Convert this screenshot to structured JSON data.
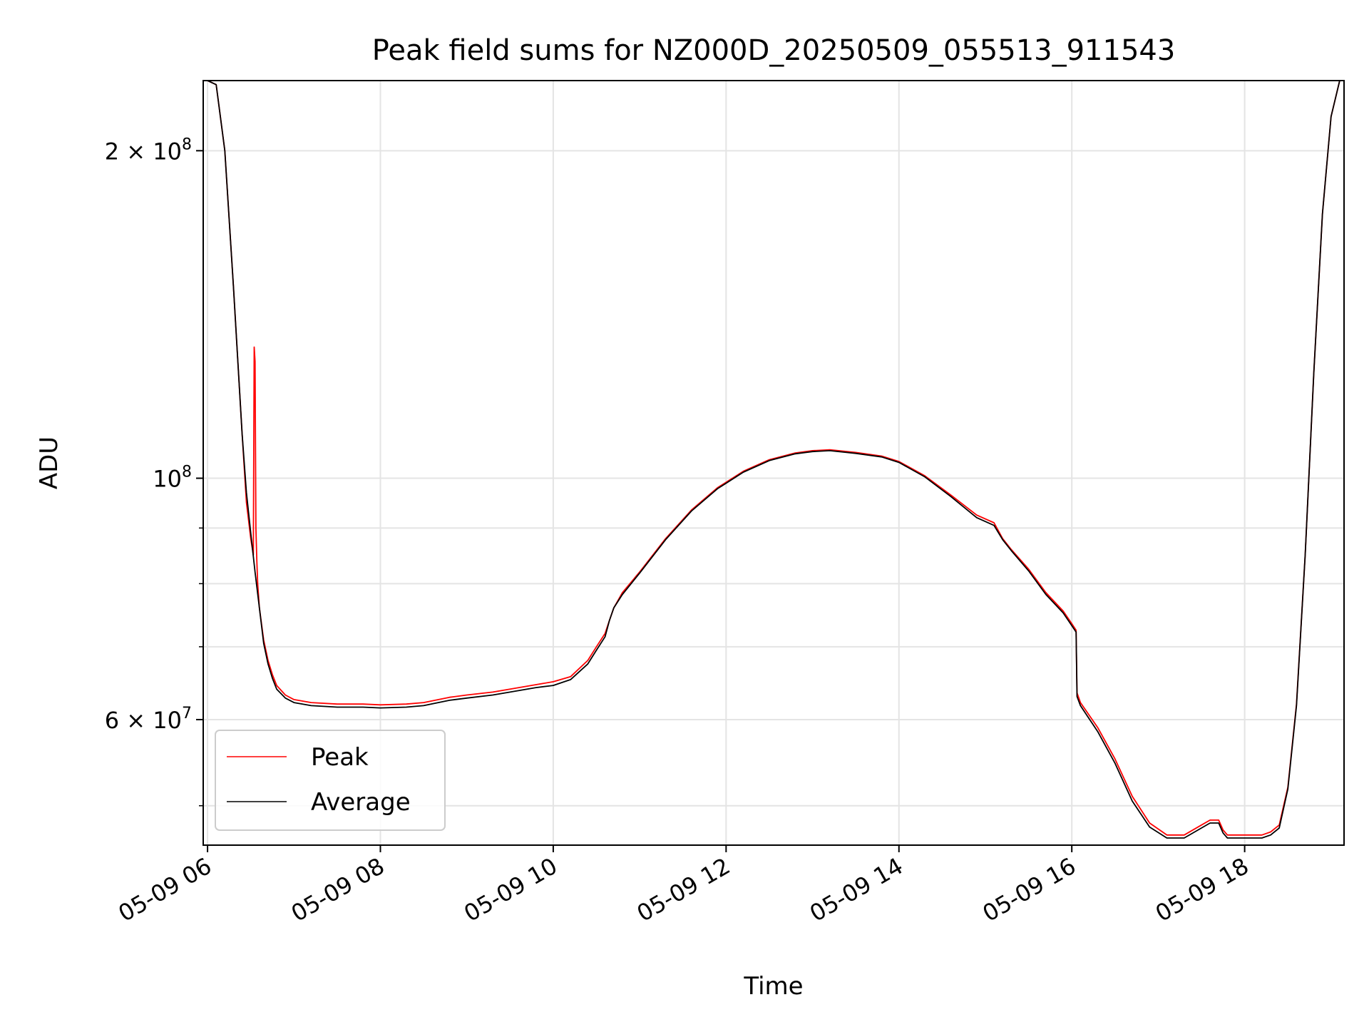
{
  "chart_data": {
    "type": "line",
    "title": "Peak field sums for NZ000D_20250509_055513_911543",
    "xlabel": "Time",
    "ylabel": "ADU",
    "x_tick_labels": [
      "05-09 06",
      "05-09 08",
      "05-09 10",
      "05-09 12",
      "05-09 14",
      "05-09 16",
      "05-09 18"
    ],
    "x_tick_hours": [
      6,
      8,
      10,
      12,
      14,
      16,
      18
    ],
    "y_scale": "log",
    "y_major_ticks": [
      {
        "value": 200000000,
        "mantissa": "2",
        "exponent": "8"
      },
      {
        "value": 100000000,
        "mantissa": "",
        "exponent": "8"
      },
      {
        "value": 60000000,
        "mantissa": "6",
        "exponent": "7"
      }
    ],
    "y_minor_ticks": [
      50000000,
      70000000,
      80000000,
      90000000
    ],
    "xlim_hours": [
      5.95,
      19.15
    ],
    "ylim": [
      46000000,
      232000000
    ],
    "grid": true,
    "legend_position": "lower-left",
    "colors": {
      "peak": "#ff0000",
      "average": "#000000",
      "grid": "#e4e4e4"
    },
    "series": [
      {
        "name": "Peak",
        "color": "#ff0000",
        "x_hours": [
          6.0,
          6.1,
          6.2,
          6.3,
          6.4,
          6.45,
          6.5,
          6.53,
          6.54,
          6.55,
          6.56,
          6.57,
          6.58,
          6.6,
          6.65,
          6.7,
          6.75,
          6.8,
          6.9,
          7.0,
          7.2,
          7.5,
          7.8,
          8.0,
          8.3,
          8.5,
          8.8,
          9.0,
          9.3,
          9.5,
          9.8,
          10.0,
          10.2,
          10.4,
          10.5,
          10.6,
          10.65,
          10.7,
          10.8,
          11.0,
          11.3,
          11.6,
          11.9,
          12.2,
          12.5,
          12.8,
          13.0,
          13.2,
          13.5,
          13.8,
          14.0,
          14.3,
          14.6,
          14.9,
          15.1,
          15.2,
          15.3,
          15.5,
          15.7,
          15.9,
          16.0,
          16.05,
          16.06,
          16.1,
          16.3,
          16.5,
          16.7,
          16.9,
          17.1,
          17.3,
          17.5,
          17.6,
          17.7,
          17.75,
          17.8,
          18.0,
          18.2,
          18.3,
          18.4,
          18.5,
          18.6,
          18.7,
          18.8,
          18.9,
          19.0,
          19.1
        ],
        "y": [
          232000000,
          230000000,
          200000000,
          150000000,
          110000000,
          95000000,
          88000000,
          85000000,
          132000000,
          128000000,
          90000000,
          84000000,
          80000000,
          76000000,
          71000000,
          68000000,
          66000000,
          64500000,
          63200000,
          62600000,
          62200000,
          62000000,
          62000000,
          61900000,
          62000000,
          62200000,
          62900000,
          63200000,
          63600000,
          64000000,
          64600000,
          65000000,
          65700000,
          68000000,
          70000000,
          72000000,
          74000000,
          76000000,
          78500000,
          82000000,
          88000000,
          93500000,
          98000000,
          101500000,
          104000000,
          105500000,
          106000000,
          106200000,
          105600000,
          104800000,
          103600000,
          100500000,
          96500000,
          92500000,
          91000000,
          88000000,
          86000000,
          82500000,
          78500000,
          75500000,
          73500000,
          72500000,
          63500000,
          62200000,
          59000000,
          55200000,
          51000000,
          48200000,
          47000000,
          47000000,
          48000000,
          48500000,
          48500000,
          47500000,
          47000000,
          47000000,
          47000000,
          47300000,
          48000000,
          52000000,
          62000000,
          85000000,
          125000000,
          175000000,
          215000000,
          232000000
        ]
      },
      {
        "name": "Average",
        "color": "#000000",
        "x_hours": [
          6.0,
          6.1,
          6.2,
          6.3,
          6.4,
          6.45,
          6.5,
          6.55,
          6.6,
          6.65,
          6.7,
          6.75,
          6.8,
          6.9,
          7.0,
          7.2,
          7.5,
          7.8,
          8.0,
          8.3,
          8.5,
          8.8,
          9.0,
          9.3,
          9.5,
          9.8,
          10.0,
          10.2,
          10.4,
          10.5,
          10.6,
          10.65,
          10.7,
          10.8,
          11.0,
          11.3,
          11.6,
          11.9,
          12.2,
          12.5,
          12.8,
          13.0,
          13.2,
          13.5,
          13.8,
          14.0,
          14.3,
          14.6,
          14.9,
          15.1,
          15.2,
          15.3,
          15.5,
          15.7,
          15.9,
          16.0,
          16.05,
          16.06,
          16.1,
          16.3,
          16.5,
          16.7,
          16.9,
          17.1,
          17.3,
          17.5,
          17.6,
          17.7,
          17.75,
          17.8,
          18.0,
          18.2,
          18.3,
          18.4,
          18.5,
          18.6,
          18.7,
          18.8,
          18.9,
          19.0,
          19.1
        ],
        "y": [
          232000000,
          230000000,
          200000000,
          150000000,
          110000000,
          97000000,
          89000000,
          82000000,
          76000000,
          70500000,
          67500000,
          65500000,
          64000000,
          62800000,
          62200000,
          61800000,
          61600000,
          61600000,
          61500000,
          61600000,
          61800000,
          62500000,
          62800000,
          63200000,
          63600000,
          64200000,
          64500000,
          65300000,
          67500000,
          69500000,
          71500000,
          74000000,
          76000000,
          78200000,
          81800000,
          87800000,
          93300000,
          97800000,
          101300000,
          103800000,
          105300000,
          105800000,
          106000000,
          105400000,
          104600000,
          103400000,
          100300000,
          96200000,
          92000000,
          90500000,
          87800000,
          85800000,
          82200000,
          78200000,
          75200000,
          73200000,
          72200000,
          63000000,
          61800000,
          58500000,
          54700000,
          50500000,
          47800000,
          46700000,
          46700000,
          47700000,
          48200000,
          48200000,
          47200000,
          46700000,
          46700000,
          46700000,
          47000000,
          47700000,
          51800000,
          61800000,
          85000000,
          125000000,
          175000000,
          215000000,
          232000000
        ]
      }
    ]
  }
}
